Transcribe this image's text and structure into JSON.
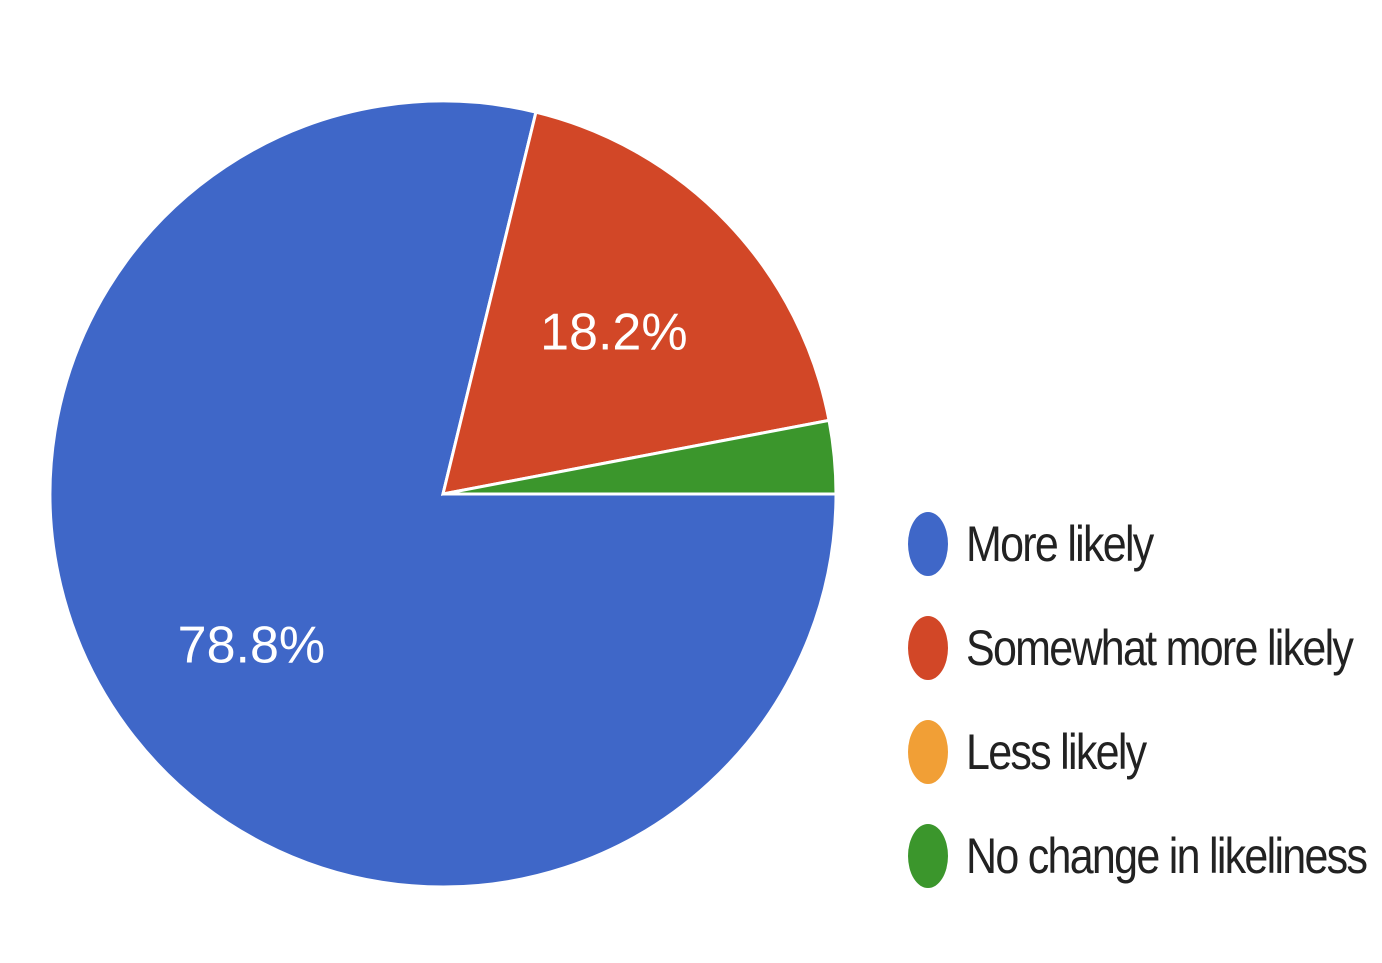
{
  "chart_data": {
    "type": "pie",
    "categories": [
      "More likely",
      "Somewhat more likely",
      "Less likely",
      "No change in likeliness"
    ],
    "values": [
      78.8,
      18.2,
      0,
      3.0
    ],
    "data_labels": [
      "78.8%",
      "18.2%",
      "",
      ""
    ],
    "colors": [
      "#3f67c8",
      "#d24727",
      "#f19f36",
      "#3b962c"
    ],
    "legend": "right",
    "legend_labels": [
      "More likely",
      "Somewhat more likely",
      "Less likely",
      "No change in likeliness"
    ]
  }
}
